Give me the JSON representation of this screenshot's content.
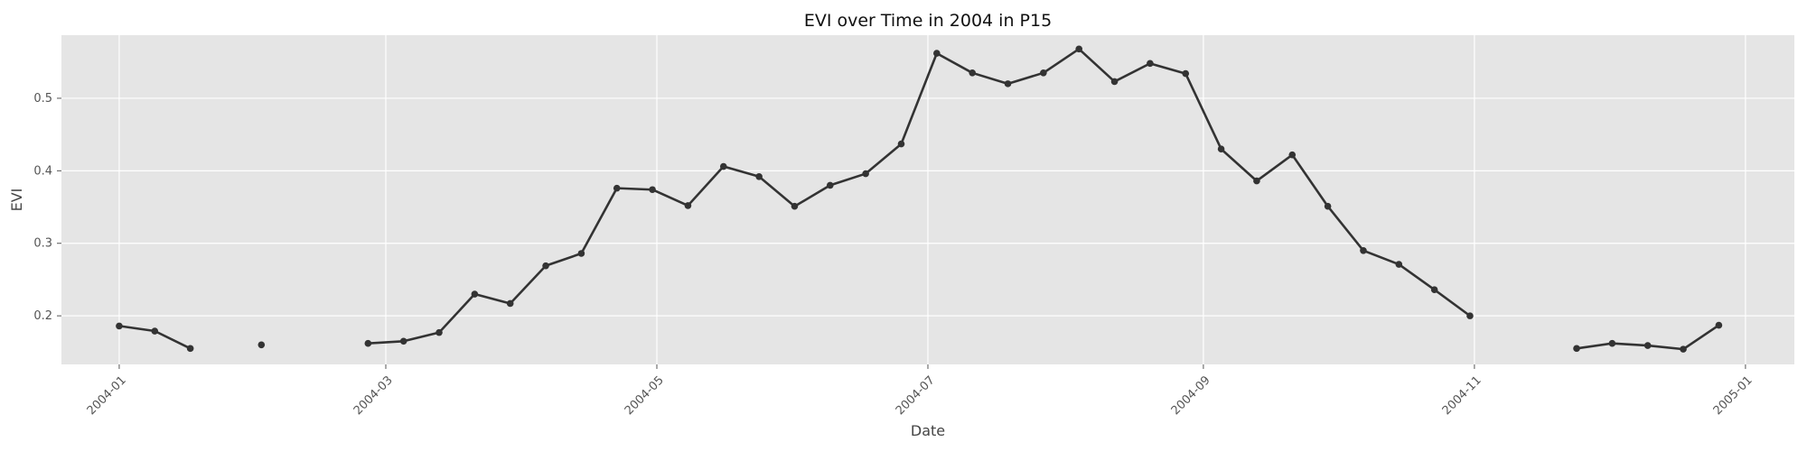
{
  "chart_data": {
    "type": "line",
    "title": "EVI over Time in 2004 in P15",
    "xlabel": "Date",
    "ylabel": "EVI",
    "x_ticks": [
      "2004-01",
      "2004-03",
      "2004-05",
      "2004-07",
      "2004-09",
      "2004-11",
      "2005-01"
    ],
    "y_ticks": [
      "0.2",
      "0.3",
      "0.4",
      "0.5"
    ],
    "xlim": [
      "2003-12-19",
      "2005-01-12"
    ],
    "ylim": [
      0.133,
      0.587
    ],
    "grid": true,
    "legend": false,
    "colors": {
      "plot_background": "#e5e5e5",
      "grid": "#ffffff",
      "line": "#333333",
      "marker": "#333333"
    },
    "series": [
      {
        "color": "#333333",
        "points": [
          {
            "x": "2004-01-01",
            "y": 0.186
          },
          {
            "x": "2004-01-09",
            "y": 0.179
          },
          {
            "x": "2004-01-17",
            "y": 0.155
          },
          {
            "x": "2004-01-25",
            "y": null
          },
          {
            "x": "2004-02-02",
            "y": 0.16
          },
          {
            "x": "2004-02-10",
            "y": null
          },
          {
            "x": "2004-02-18",
            "y": null
          },
          {
            "x": "2004-02-26",
            "y": 0.162
          },
          {
            "x": "2004-03-05",
            "y": 0.165
          },
          {
            "x": "2004-03-13",
            "y": 0.177
          },
          {
            "x": "2004-03-21",
            "y": 0.23
          },
          {
            "x": "2004-03-29",
            "y": 0.217
          },
          {
            "x": "2004-04-06",
            "y": 0.269
          },
          {
            "x": "2004-04-14",
            "y": 0.286
          },
          {
            "x": "2004-04-22",
            "y": 0.376
          },
          {
            "x": "2004-04-30",
            "y": 0.374
          },
          {
            "x": "2004-05-08",
            "y": 0.352
          },
          {
            "x": "2004-05-16",
            "y": 0.406
          },
          {
            "x": "2004-05-24",
            "y": 0.392
          },
          {
            "x": "2004-06-01",
            "y": 0.351
          },
          {
            "x": "2004-06-09",
            "y": 0.38
          },
          {
            "x": "2004-06-17",
            "y": 0.396
          },
          {
            "x": "2004-06-25",
            "y": 0.437
          },
          {
            "x": "2004-07-03",
            "y": 0.562
          },
          {
            "x": "2004-07-11",
            "y": 0.535
          },
          {
            "x": "2004-07-19",
            "y": 0.52
          },
          {
            "x": "2004-07-27",
            "y": 0.535
          },
          {
            "x": "2004-08-04",
            "y": 0.568
          },
          {
            "x": "2004-08-12",
            "y": 0.523
          },
          {
            "x": "2004-08-20",
            "y": 0.548
          },
          {
            "x": "2004-08-28",
            "y": 0.534
          },
          {
            "x": "2004-09-05",
            "y": 0.43
          },
          {
            "x": "2004-09-13",
            "y": 0.386
          },
          {
            "x": "2004-09-21",
            "y": 0.422
          },
          {
            "x": "2004-09-29",
            "y": 0.351
          },
          {
            "x": "2004-10-07",
            "y": 0.29
          },
          {
            "x": "2004-10-15",
            "y": 0.271
          },
          {
            "x": "2004-10-23",
            "y": 0.236
          },
          {
            "x": "2004-10-31",
            "y": 0.2
          },
          {
            "x": "2004-11-08",
            "y": null
          },
          {
            "x": "2004-11-16",
            "y": null
          },
          {
            "x": "2004-11-24",
            "y": 0.155
          },
          {
            "x": "2004-12-02",
            "y": 0.162
          },
          {
            "x": "2004-12-10",
            "y": 0.159
          },
          {
            "x": "2004-12-18",
            "y": 0.154
          },
          {
            "x": "2004-12-26",
            "y": 0.187
          }
        ]
      }
    ]
  }
}
